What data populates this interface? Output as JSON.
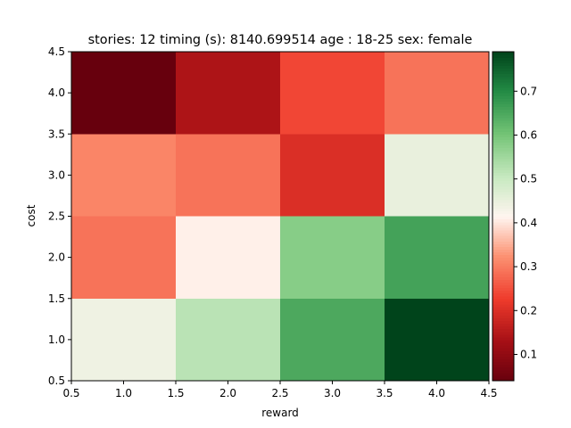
{
  "chart_data": {
    "type": "heatmap",
    "title": "stories: 12 timing (s): 8140.699514 age : 18-25 sex: female",
    "xlabel": "reward",
    "ylabel": "cost",
    "xlim": [
      0.5,
      4.5
    ],
    "ylim": [
      0.5,
      4.5
    ],
    "x": [
      1,
      2,
      3,
      4
    ],
    "y": [
      1,
      2,
      3,
      4
    ],
    "xticks": [
      "0.5",
      "1.0",
      "1.5",
      "2.0",
      "2.5",
      "3.0",
      "3.5",
      "4.0",
      "4.5"
    ],
    "yticks": [
      "0.5",
      "1.0",
      "1.5",
      "2.0",
      "2.5",
      "3.0",
      "3.5",
      "4.0",
      "4.5"
    ],
    "values": [
      [
        0.44,
        0.52,
        0.65,
        0.79
      ],
      [
        0.29,
        0.41,
        0.58,
        0.66
      ],
      [
        0.31,
        0.29,
        0.2,
        0.45
      ],
      [
        0.04,
        0.14,
        0.24,
        0.29
      ]
    ],
    "colormap": "RdYlGn-like (Reds to Greens)",
    "colorbar": {
      "range": [
        0.04,
        0.79
      ],
      "ticks": [
        "0.1",
        "0.2",
        "0.3",
        "0.4",
        "0.5",
        "0.6",
        "0.7"
      ]
    },
    "grid": false
  }
}
